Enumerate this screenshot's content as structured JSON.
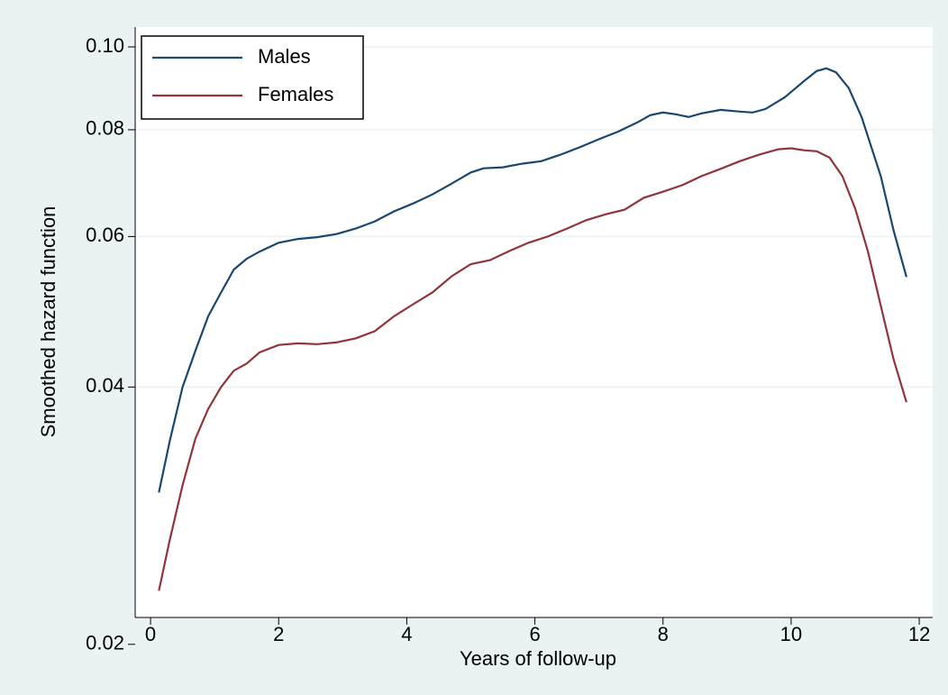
{
  "chart_data": {
    "type": "line",
    "xlabel": "Years of follow-up",
    "ylabel": "Smoothed hazard function",
    "x": [
      0.13,
      0.3,
      0.5,
      0.7,
      0.9,
      1.1,
      1.3,
      1.5,
      1.7,
      2,
      2.3,
      2.6,
      2.9,
      3.2,
      3.5,
      3.8,
      4.1,
      4.4,
      4.7,
      5,
      5.2,
      5.5,
      5.8,
      6.1,
      6.4,
      6.7,
      7,
      7.3,
      7.6,
      7.8,
      8,
      8.2,
      8.4,
      8.6,
      8.9,
      9.2,
      9.4,
      9.6,
      9.9,
      10.2,
      10.4,
      10.55,
      10.7,
      10.9,
      11.1,
      11.4,
      11.6,
      11.8
    ],
    "series": [
      {
        "name": "Males",
        "color": "#1a476f",
        "values": [
          0.0301,
          0.0346,
          0.04,
          0.0441,
          0.0484,
          0.0516,
          0.0549,
          0.0565,
          0.0576,
          0.059,
          0.0596,
          0.0599,
          0.0604,
          0.0613,
          0.0625,
          0.0642,
          0.0656,
          0.0672,
          0.0692,
          0.0713,
          0.0721,
          0.0723,
          0.073,
          0.0735,
          0.0748,
          0.0763,
          0.078,
          0.0796,
          0.0816,
          0.0832,
          0.0838,
          0.0834,
          0.0828,
          0.0836,
          0.0844,
          0.084,
          0.0838,
          0.0846,
          0.0873,
          0.0912,
          0.0937,
          0.0944,
          0.0934,
          0.0895,
          0.0828,
          0.0706,
          0.061,
          0.0538
        ]
      },
      {
        "name": "Females",
        "color": "#90353b",
        "x": [
          0.13,
          0.3,
          0.5,
          0.7,
          0.9,
          1.1,
          1.3,
          1.5,
          1.7,
          2,
          2.3,
          2.6,
          2.9,
          3.2,
          3.5,
          3.8,
          4.1,
          4.4,
          4.7,
          5,
          5.3,
          5.6,
          5.9,
          6.2,
          6.5,
          6.8,
          7.1,
          7.4,
          7.7,
          8,
          8.3,
          8.6,
          8.9,
          9.2,
          9.5,
          9.8,
          10,
          10.2,
          10.4,
          10.6,
          10.8,
          11,
          11.2,
          11.4,
          11.6,
          11.8
        ],
        "values": [
          0.0231,
          0.0265,
          0.0307,
          0.0348,
          0.0377,
          0.04,
          0.0418,
          0.0426,
          0.0439,
          0.0448,
          0.045,
          0.0449,
          0.0451,
          0.0456,
          0.0465,
          0.0484,
          0.05,
          0.0516,
          0.0539,
          0.0557,
          0.0563,
          0.0577,
          0.059,
          0.06,
          0.0613,
          0.0627,
          0.0637,
          0.0645,
          0.0666,
          0.0677,
          0.0689,
          0.0706,
          0.072,
          0.0735,
          0.0748,
          0.0759,
          0.0761,
          0.0757,
          0.0755,
          0.0742,
          0.0706,
          0.0647,
          0.0576,
          0.0498,
          0.0431,
          0.0384
        ]
      }
    ],
    "xlim": [
      -0.24,
      12.21
    ],
    "ylim": [
      0.0215,
      0.1055
    ],
    "xticks": [
      0,
      2,
      4,
      6,
      8,
      10,
      12
    ],
    "yticks": [
      {
        "value": 0.02,
        "label": "0.02"
      },
      {
        "value": 0.04,
        "label": "0.04"
      },
      {
        "value": 0.06,
        "label": "0.06"
      },
      {
        "value": 0.08,
        "label": "0.08"
      },
      {
        "value": 0.1,
        "label": "0.10"
      }
    ],
    "ylog": true,
    "grid": true,
    "legend": "top-left"
  }
}
